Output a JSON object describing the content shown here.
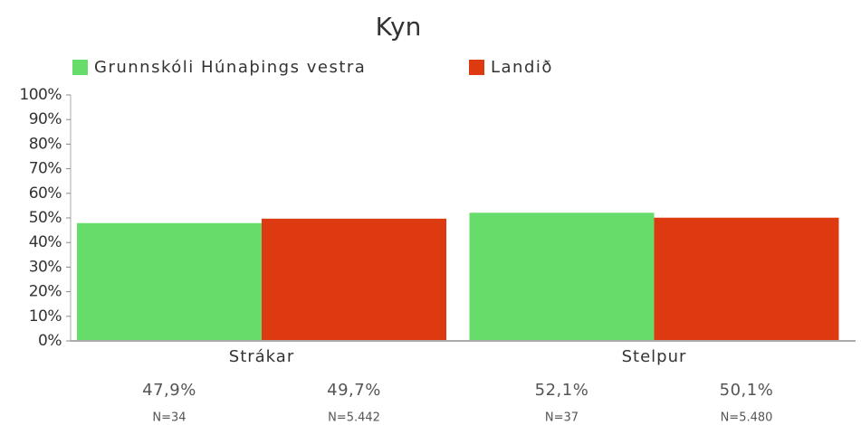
{
  "chart_data": {
    "type": "bar",
    "title": "Kyn",
    "categories": [
      "Strákar",
      "Stelpur"
    ],
    "series": [
      {
        "name": "Grunnskóli Húnaþings vestra",
        "color": "#66dc6a",
        "values": [
          47.9,
          52.1
        ],
        "value_labels": [
          "47,9%",
          "52,1%"
        ],
        "n_labels": [
          "N=34",
          "N=37"
        ]
      },
      {
        "name": "Landið",
        "color": "#dd3a12",
        "values": [
          49.7,
          50.1
        ],
        "value_labels": [
          "49,7%",
          "50,1%"
        ],
        "n_labels": [
          "N=5.442",
          "N=5.480"
        ]
      }
    ],
    "ylim": [
      0,
      100
    ],
    "yticks": [
      {
        "value": 0,
        "label": "0%"
      },
      {
        "value": 10,
        "label": "10%"
      },
      {
        "value": 20,
        "label": "20%"
      },
      {
        "value": 30,
        "label": "30%"
      },
      {
        "value": 40,
        "label": "40%"
      },
      {
        "value": 50,
        "label": "50%"
      },
      {
        "value": 60,
        "label": "60%"
      },
      {
        "value": 70,
        "label": "70%"
      },
      {
        "value": 80,
        "label": "80%"
      },
      {
        "value": 90,
        "label": "90%"
      },
      {
        "value": 100,
        "label": "100%"
      }
    ],
    "legend": "top-left",
    "grid": false
  }
}
